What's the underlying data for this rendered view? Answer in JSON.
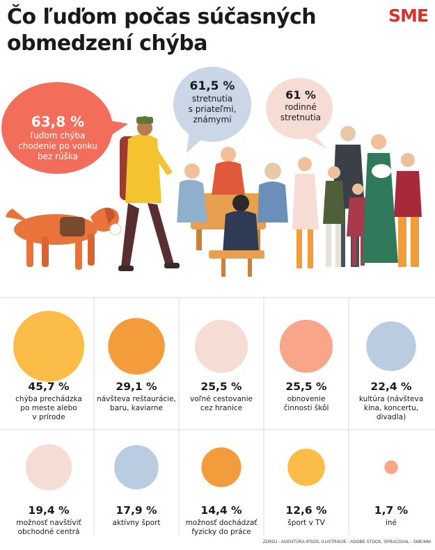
{
  "header": {
    "title_line1": "Čo ľuďom počas súčasných",
    "title_line2": "obmedzení chýba",
    "logo": "SME"
  },
  "bubbles": [
    {
      "value": "63,8 %",
      "label_lines": [
        "ľuďom chýba",
        "chodenie po vonku",
        "bez rúška"
      ],
      "color": "#f26e5a"
    },
    {
      "value": "61,5 %",
      "label_lines": [
        "stretnutia",
        "s priateľmi,",
        "známymi"
      ],
      "color": "#c9d7e6"
    },
    {
      "value": "61 %",
      "label_lines": [
        "rodinné",
        "stretnutia"
      ],
      "color": "#f6ddd4"
    }
  ],
  "chart_data": {
    "type": "bubble",
    "series": [
      {
        "value": 45.7,
        "display": "45,7 %",
        "label_lines": [
          "chýba prechádzka",
          "po meste alebo",
          "v prírode"
        ],
        "color": "#fbbc48"
      },
      {
        "value": 29.1,
        "display": "29,1 %",
        "label_lines": [
          "návšteva reštaurácie,",
          "baru, kaviarne"
        ],
        "color": "#f49b3c"
      },
      {
        "value": 25.5,
        "display": "25,5 %",
        "label_lines": [
          "voľné cestovanie",
          "cez hranice"
        ],
        "color": "#f6ddd4"
      },
      {
        "value": 25.5,
        "display": "25,5 %",
        "label_lines": [
          "obnovenie",
          "činnosti škôl"
        ],
        "color": "#f9a58a"
      },
      {
        "value": 22.4,
        "display": "22,4 %",
        "label_lines": [
          "kultúra (návšteva",
          "kina, koncertu,",
          "divadla)"
        ],
        "color": "#b9cce0"
      },
      {
        "value": 19.4,
        "display": "19,4 %",
        "label_lines": [
          "možnosť navštíviť",
          "obchodné centrá"
        ],
        "color": "#f6ddd4"
      },
      {
        "value": 17.9,
        "display": "17,9 %",
        "label_lines": [
          "aktívny šport"
        ],
        "color": "#b9cce0"
      },
      {
        "value": 14.4,
        "display": "14,4 %",
        "label_lines": [
          "možnosť dochádzať",
          "fyzicky do práce"
        ],
        "color": "#f49b3c"
      },
      {
        "value": 12.6,
        "display": "12,6 %",
        "label_lines": [
          "šport v TV"
        ],
        "color": "#fbbc48"
      },
      {
        "value": 1.7,
        "display": "1,7 %",
        "label_lines": [
          "iné"
        ],
        "color": "#f9a58a"
      }
    ]
  },
  "footer": "ZDROJ - AGENTÚRA IPSOS, ILUSTRÁCIE - ADOBE STOCK, SPRACOVAL - SME/MM"
}
